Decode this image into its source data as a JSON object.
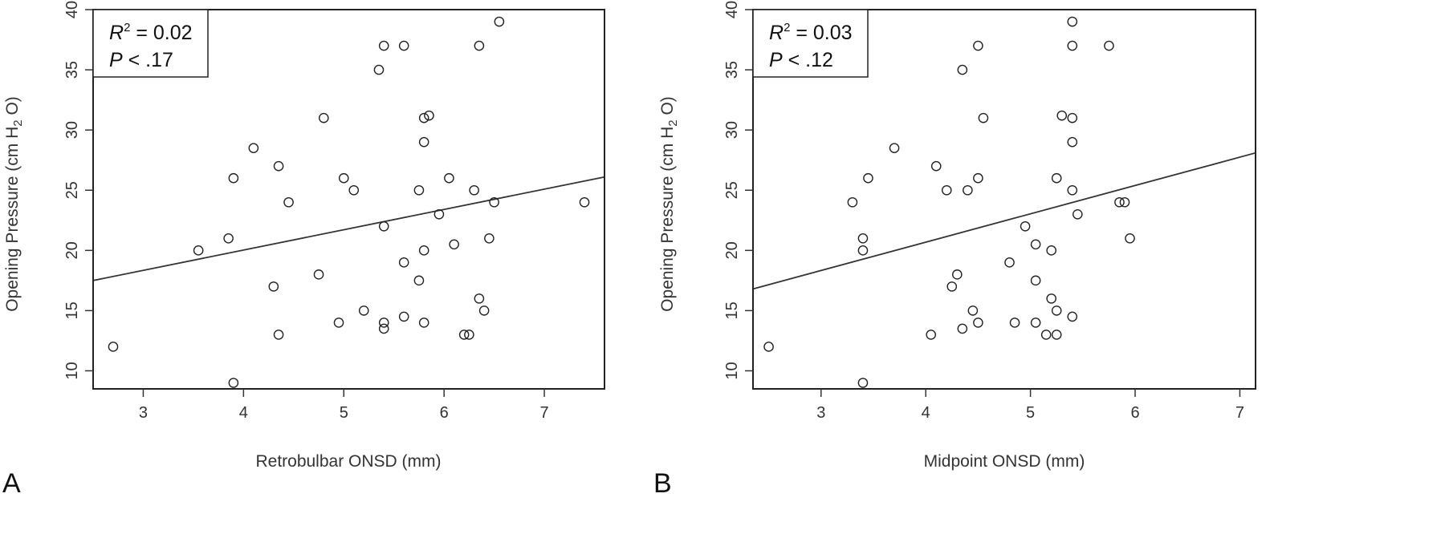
{
  "chart_data": [
    {
      "type": "scatter",
      "panel_label": "A",
      "xlabel": "Retrobulbar ONSD (mm)",
      "ylabel": {
        "before_sub": "Opening Pressure (cm H",
        "sub": "2",
        "after_sub": " O)"
      },
      "xlim": [
        2.5,
        7.6
      ],
      "ylim": [
        8.5,
        40
      ],
      "x_ticks": [
        "3",
        "4",
        "5",
        "6",
        "7"
      ],
      "y_ticks": [
        "10",
        "15",
        "20",
        "25",
        "30",
        "35",
        "40"
      ],
      "grid": false,
      "legend_placement": "top-left",
      "stats": {
        "r_symbol": "R",
        "r_exp": "2",
        "r_text": " = 0.02",
        "p_symbol": "P",
        "p_text": " < .17"
      },
      "fit_line": {
        "x": [
          2.5,
          7.6
        ],
        "y": [
          17.5,
          26.1
        ]
      },
      "points": [
        [
          2.7,
          12
        ],
        [
          3.55,
          20
        ],
        [
          3.85,
          21
        ],
        [
          3.9,
          26
        ],
        [
          3.9,
          9
        ],
        [
          4.1,
          28.5
        ],
        [
          4.3,
          17
        ],
        [
          4.35,
          27
        ],
        [
          4.35,
          13
        ],
        [
          4.45,
          24
        ],
        [
          4.75,
          18
        ],
        [
          4.8,
          31
        ],
        [
          4.95,
          14
        ],
        [
          5.0,
          26
        ],
        [
          5.1,
          25
        ],
        [
          5.2,
          15
        ],
        [
          5.35,
          35
        ],
        [
          5.4,
          37
        ],
        [
          5.4,
          22
        ],
        [
          5.4,
          14
        ],
        [
          5.4,
          13.5
        ],
        [
          5.6,
          37
        ],
        [
          5.6,
          19
        ],
        [
          5.6,
          14.5
        ],
        [
          5.75,
          25
        ],
        [
          5.75,
          17.5
        ],
        [
          5.8,
          31
        ],
        [
          5.8,
          29
        ],
        [
          5.8,
          20
        ],
        [
          5.8,
          14
        ],
        [
          5.85,
          31.2
        ],
        [
          5.95,
          23
        ],
        [
          6.05,
          26
        ],
        [
          6.1,
          20.5
        ],
        [
          6.2,
          13
        ],
        [
          6.25,
          13
        ],
        [
          6.3,
          25
        ],
        [
          6.35,
          37
        ],
        [
          6.35,
          16
        ],
        [
          6.4,
          15
        ],
        [
          6.45,
          21
        ],
        [
          6.5,
          24
        ],
        [
          6.55,
          39
        ],
        [
          7.4,
          24
        ]
      ]
    },
    {
      "type": "scatter",
      "panel_label": "B",
      "xlabel": "Midpoint ONSD (mm)",
      "ylabel": {
        "before_sub": "Opening Pressure (cm H",
        "sub": "2",
        "after_sub": " O)"
      },
      "xlim": [
        2.35,
        7.15
      ],
      "ylim": [
        8.5,
        40
      ],
      "x_ticks": [
        "3",
        "4",
        "5",
        "6",
        "7"
      ],
      "y_ticks": [
        "10",
        "15",
        "20",
        "25",
        "30",
        "35",
        "40"
      ],
      "grid": false,
      "legend_placement": "top-left",
      "stats": {
        "r_symbol": "R",
        "r_exp": "2",
        "r_text": " = 0.03",
        "p_symbol": "P",
        "p_text": " < .12"
      },
      "fit_line": {
        "x": [
          2.35,
          7.15
        ],
        "y": [
          16.8,
          28.1
        ]
      },
      "points": [
        [
          2.5,
          12
        ],
        [
          3.3,
          24
        ],
        [
          3.4,
          21
        ],
        [
          3.4,
          20
        ],
        [
          3.4,
          9
        ],
        [
          3.45,
          26
        ],
        [
          3.7,
          28.5
        ],
        [
          4.05,
          13
        ],
        [
          4.1,
          27
        ],
        [
          4.2,
          25
        ],
        [
          4.25,
          17
        ],
        [
          4.3,
          18
        ],
        [
          4.35,
          35
        ],
        [
          4.35,
          13.5
        ],
        [
          4.4,
          25
        ],
        [
          4.45,
          15
        ],
        [
          4.5,
          37
        ],
        [
          4.5,
          26
        ],
        [
          4.5,
          14
        ],
        [
          4.55,
          31
        ],
        [
          4.8,
          19
        ],
        [
          4.85,
          14
        ],
        [
          4.95,
          22
        ],
        [
          5.05,
          20.5
        ],
        [
          5.05,
          17.5
        ],
        [
          5.05,
          14
        ],
        [
          5.15,
          13
        ],
        [
          5.2,
          20
        ],
        [
          5.2,
          16
        ],
        [
          5.25,
          26
        ],
        [
          5.25,
          15
        ],
        [
          5.25,
          13
        ],
        [
          5.3,
          31.2
        ],
        [
          5.4,
          39
        ],
        [
          5.4,
          37
        ],
        [
          5.4,
          31
        ],
        [
          5.4,
          29
        ],
        [
          5.4,
          25
        ],
        [
          5.4,
          14.5
        ],
        [
          5.45,
          23
        ],
        [
          5.75,
          37
        ],
        [
          5.85,
          24
        ],
        [
          5.9,
          24
        ],
        [
          5.95,
          21
        ]
      ]
    }
  ]
}
